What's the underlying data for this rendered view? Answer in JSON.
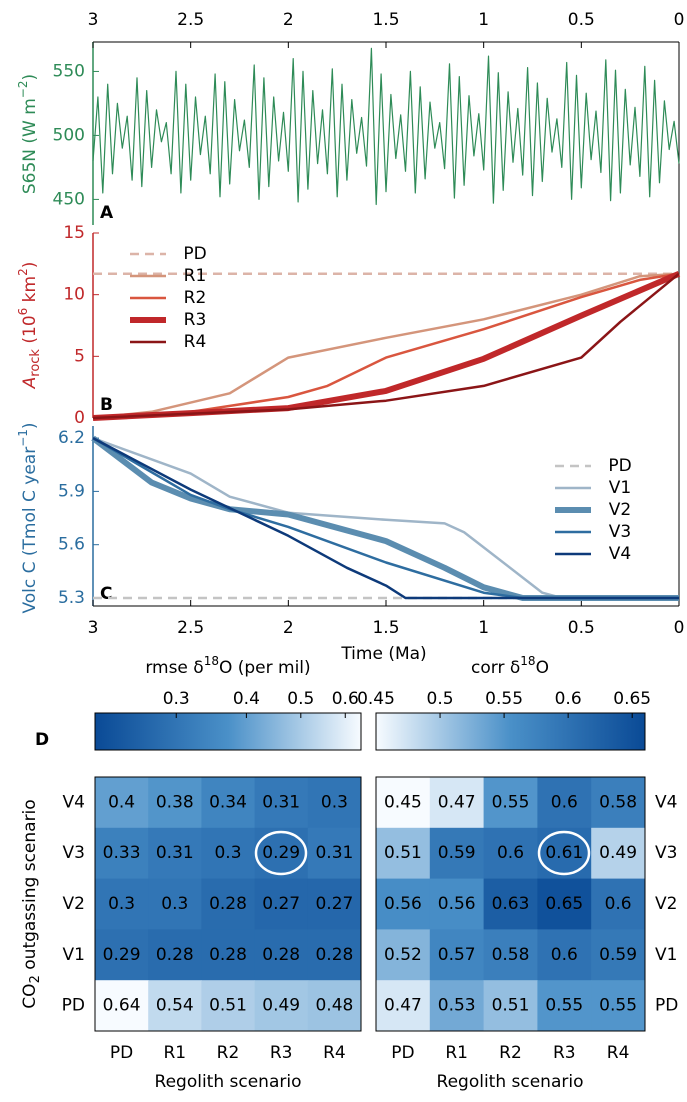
{
  "chart_data": [
    {
      "type": "line",
      "panel": "A",
      "y_label": [
        "S65N (W m",
        "−2",
        ")"
      ],
      "color": "#2e8b57",
      "xaxis_side": "top",
      "xlim": [
        3,
        0
      ],
      "xticks": [
        3,
        2.5,
        2,
        1.5,
        1,
        0.5,
        0
      ],
      "ylim": [
        430,
        573
      ],
      "yticks": [
        450,
        500,
        550
      ],
      "x": [
        3,
        2.975,
        2.95,
        2.925,
        2.9,
        2.875,
        2.85,
        2.825,
        2.8,
        2.775,
        2.75,
        2.725,
        2.7,
        2.675,
        2.65,
        2.625,
        2.6,
        2.575,
        2.55,
        2.525,
        2.5,
        2.475,
        2.45,
        2.425,
        2.4,
        2.375,
        2.35,
        2.325,
        2.3,
        2.275,
        2.25,
        2.225,
        2.2,
        2.175,
        2.15,
        2.125,
        2.1,
        2.075,
        2.05,
        2.025,
        2,
        1.975,
        1.95,
        1.925,
        1.9,
        1.875,
        1.85,
        1.825,
        1.8,
        1.775,
        1.75,
        1.725,
        1.7,
        1.675,
        1.65,
        1.625,
        1.6,
        1.575,
        1.55,
        1.525,
        1.5,
        1.475,
        1.45,
        1.425,
        1.4,
        1.375,
        1.35,
        1.325,
        1.3,
        1.275,
        1.25,
        1.225,
        1.2,
        1.175,
        1.15,
        1.125,
        1.1,
        1.075,
        1.05,
        1.025,
        1,
        0.975,
        0.95,
        0.925,
        0.9,
        0.875,
        0.85,
        0.825,
        0.8,
        0.775,
        0.75,
        0.725,
        0.7,
        0.675,
        0.65,
        0.625,
        0.6,
        0.575,
        0.55,
        0.525,
        0.5,
        0.475,
        0.45,
        0.425,
        0.4,
        0.375,
        0.35,
        0.325,
        0.3,
        0.275,
        0.25,
        0.225,
        0.2,
        0.175,
        0.15,
        0.125,
        0.1,
        0.075,
        0.05,
        0.025,
        0
      ],
      "values": [
        480,
        530,
        455,
        540,
        470,
        525,
        490,
        515,
        465,
        545,
        460,
        535,
        475,
        520,
        495,
        510,
        470,
        550,
        455,
        540,
        465,
        530,
        485,
        515,
        470,
        548,
        452,
        542,
        462,
        528,
        488,
        512,
        475,
        555,
        450,
        545,
        460,
        530,
        480,
        518,
        472,
        560,
        448,
        550,
        458,
        535,
        478,
        520,
        470,
        552,
        452,
        540,
        465,
        528,
        486,
        514,
        476,
        568,
        446,
        548,
        456,
        532,
        482,
        516,
        472,
        550,
        455,
        538,
        466,
        526,
        490,
        510,
        474,
        556,
        451,
        546,
        461,
        531,
        484,
        517,
        473,
        562,
        447,
        549,
        457,
        534,
        479,
        521,
        469,
        553,
        453,
        541,
        464,
        529,
        487,
        513,
        475,
        557,
        450,
        547,
        459,
        533,
        481,
        519,
        471,
        559,
        449,
        551,
        455,
        536,
        477,
        522,
        468,
        554,
        452,
        543,
        463,
        527,
        489,
        511,
        478
      ]
    },
    {
      "type": "line",
      "panel": "B",
      "y_label": [
        "A",
        "rock",
        " (10",
        "6",
        " km",
        "2",
        ")"
      ],
      "color": "#c0282a",
      "legend": "upper left",
      "xlim": [
        3,
        0
      ],
      "ylim": [
        0,
        15
      ],
      "yticks": [
        0,
        5,
        10,
        15
      ],
      "series": [
        {
          "name": "PD",
          "color": "#dcb4a8",
          "style": "dashed",
          "linewidth": 2.5,
          "x": [
            3,
            0
          ],
          "values": [
            11.7,
            11.7
          ]
        },
        {
          "name": "R1",
          "color": "#d4957b",
          "linewidth": 2.5,
          "x": [
            3,
            2.7,
            2.3,
            2,
            1.5,
            1,
            0.5,
            0.2,
            0
          ],
          "values": [
            0,
            0.5,
            2,
            4.9,
            6.5,
            8,
            10,
            11.5,
            11.7
          ]
        },
        {
          "name": "R2",
          "color": "#d9563f",
          "linewidth": 2.5,
          "x": [
            3,
            2.5,
            2,
            1.8,
            1.5,
            1,
            0.5,
            0.2,
            0
          ],
          "values": [
            0,
            0.5,
            1.7,
            2.6,
            4.9,
            7.2,
            9.8,
            11.2,
            11.7
          ]
        },
        {
          "name": "R3",
          "color": "#c0282a",
          "linewidth": 6,
          "x": [
            3,
            2.5,
            2,
            1.5,
            1,
            0.5,
            0
          ],
          "values": [
            0,
            0.4,
            0.8,
            2.2,
            4.8,
            8.3,
            11.7
          ]
        },
        {
          "name": "R4",
          "color": "#8b1517",
          "linewidth": 2.5,
          "x": [
            3,
            2,
            1.5,
            1,
            0.5,
            0.3,
            0
          ],
          "values": [
            0,
            0.7,
            1.4,
            2.6,
            4.9,
            7.8,
            11.7
          ]
        }
      ]
    },
    {
      "type": "line",
      "panel": "C",
      "y_label": [
        "Volc C (Tmol C year",
        "−1",
        ")"
      ],
      "color": "#2a6d9f",
      "legend": "upper right",
      "x_label": "Time (Ma)",
      "xaxis_side": "bottom",
      "xlim": [
        3,
        0
      ],
      "xticks": [
        3,
        2.5,
        2,
        1.5,
        1,
        0.5,
        0
      ],
      "ylim": [
        5.255,
        6.268
      ],
      "yticks": [
        5.3,
        5.6,
        5.9,
        6.2
      ],
      "series": [
        {
          "name": "PD",
          "color": "#c4c4c4",
          "style": "dashed",
          "linewidth": 2.5,
          "x": [
            3,
            0
          ],
          "values": [
            5.3,
            5.3
          ]
        },
        {
          "name": "V1",
          "color": "#9fb5c8",
          "linewidth": 2.5,
          "x": [
            3,
            2.5,
            2.3,
            2,
            1.5,
            1.2,
            1.1,
            0.7,
            0.6,
            0
          ],
          "values": [
            6.2,
            6,
            5.87,
            5.78,
            5.74,
            5.72,
            5.67,
            5.33,
            5.3,
            5.3
          ]
        },
        {
          "name": "V2",
          "color": "#5b8db0",
          "linewidth": 6,
          "x": [
            3,
            2.7,
            2.5,
            2.3,
            2,
            1.5,
            1.2,
            1,
            0.8,
            0
          ],
          "values": [
            6.2,
            5.95,
            5.86,
            5.8,
            5.77,
            5.62,
            5.47,
            5.36,
            5.3,
            5.3
          ]
        },
        {
          "name": "V3",
          "color": "#2e6da0",
          "linewidth": 2.5,
          "x": [
            3,
            2.5,
            2.3,
            2,
            1.5,
            1,
            0.8,
            0
          ],
          "values": [
            6.2,
            5.88,
            5.8,
            5.7,
            5.5,
            5.33,
            5.3,
            5.3
          ]
        },
        {
          "name": "V4",
          "color": "#0d3a7a",
          "linewidth": 2.5,
          "x": [
            3,
            2.5,
            2,
            1.7,
            1.5,
            1.4,
            0
          ],
          "values": [
            6.2,
            5.91,
            5.65,
            5.47,
            5.37,
            5.3,
            5.3
          ]
        }
      ]
    },
    {
      "type": "heatmap",
      "panel": "D",
      "colorbar_title": [
        "rmse δ",
        "18",
        "O (per mil)"
      ],
      "colorbar_lim": [
        0.215,
        0.64
      ],
      "colorbar_log": true,
      "colorbar_ticks": [
        0.3,
        0.4,
        0.5,
        0.6
      ],
      "colormap": [
        "#0a4a96",
        "#4a90c8",
        "#f7fbff"
      ],
      "y_label": [
        "CO",
        "2",
        " outgassing scenario"
      ],
      "yaxis_side": "left",
      "x_label": "Regolith scenario",
      "x_categories": [
        "PD",
        "R1",
        "R2",
        "R3",
        "R4"
      ],
      "y_categories": [
        "V4",
        "V3",
        "V2",
        "V1",
        "PD"
      ],
      "values": [
        [
          0.4,
          0.38,
          0.34,
          0.31,
          0.3
        ],
        [
          0.33,
          0.31,
          0.3,
          0.29,
          0.31
        ],
        [
          0.3,
          0.3,
          0.28,
          0.27,
          0.27
        ],
        [
          0.29,
          0.28,
          0.28,
          0.28,
          0.28
        ],
        [
          0.64,
          0.54,
          0.51,
          0.49,
          0.48
        ]
      ]
    },
    {
      "type": "heatmap",
      "colorbar_title": [
        "corr δ",
        "18",
        "O"
      ],
      "colorbar_lim": [
        0.45,
        0.66
      ],
      "colorbar_log": false,
      "colorbar_ticks": [
        0.45,
        0.5,
        0.55,
        0.6,
        0.65
      ],
      "colormap": [
        "#f7fbff",
        "#4a90c8",
        "#0a4a96"
      ],
      "yaxis_side": "right",
      "x_label": "Regolith scenario",
      "x_categories": [
        "PD",
        "R1",
        "R2",
        "R3",
        "R4"
      ],
      "y_categories": [
        "V4",
        "V3",
        "V2",
        "V1",
        "PD"
      ],
      "values": [
        [
          0.45,
          0.47,
          0.55,
          0.6,
          0.58
        ],
        [
          0.51,
          0.59,
          0.6,
          0.61,
          0.49
        ],
        [
          0.56,
          0.56,
          0.63,
          0.65,
          0.6
        ],
        [
          0.52,
          0.57,
          0.58,
          0.6,
          0.59
        ],
        [
          0.47,
          0.53,
          0.51,
          0.55,
          0.55
        ]
      ]
    }
  ]
}
